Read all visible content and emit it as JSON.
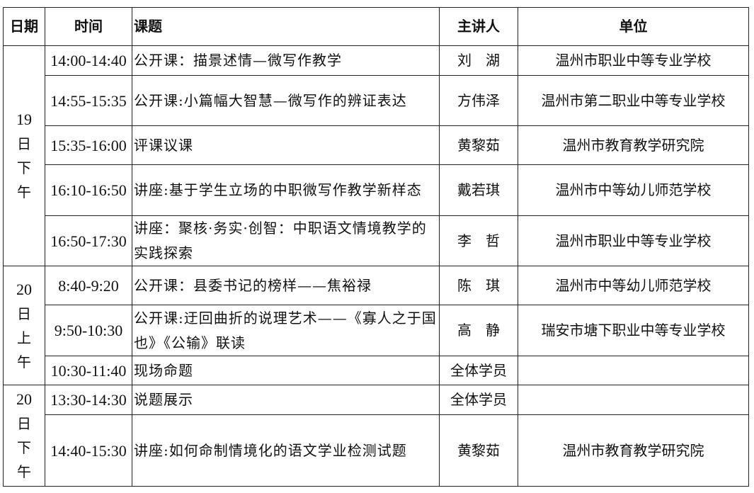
{
  "headers": {
    "date": "日期",
    "time": "时间",
    "topic": "课题",
    "speaker": "主讲人",
    "unit": "单位"
  },
  "groups": [
    {
      "day": "19",
      "chars": [
        "日",
        "下",
        "午"
      ],
      "rows": [
        {
          "time": "14:00-14:40",
          "topic": "公开课：描景述情—微写作教学",
          "speaker": "刘　湖",
          "unit": "温州市职业中等专业学校"
        },
        {
          "time": "14:55-15:35",
          "topic": "公开课:小篇幅大智慧—微写作的辨证表达",
          "speaker": "方伟泽",
          "unit": "温州市第二职业中等专业学校"
        },
        {
          "time": "15:35-16:00",
          "topic": "评课议课",
          "speaker": "黄黎茹",
          "unit": "温州市教育教学研究院"
        },
        {
          "time": "16:10-16:50",
          "topic": "讲座:基于学生立场的中职微写作教学新样态",
          "speaker": "戴若琪",
          "unit": "温州市中等幼儿师范学校"
        },
        {
          "time": "16:50-17:30",
          "topic": "讲座：聚核·务实·创智：中职语文情境教学的实践探索",
          "speaker": "李　哲",
          "unit": "温州市职业中等专业学校"
        }
      ]
    },
    {
      "day": "20",
      "chars": [
        "日",
        "上",
        "午"
      ],
      "rows": [
        {
          "time": "8:40-9:20",
          "topic": "公开课：县委书记的榜样——焦裕禄",
          "speaker": "陈　琪",
          "unit": "温州市中等幼儿师范学校"
        },
        {
          "time": "9:50-10:30",
          "topic": "公开课:迂回曲折的说理艺术——《寡人之于国也》《公输》联读",
          "speaker": "高　静",
          "unit": "瑞安市塘下职业中等专业学校"
        },
        {
          "time": "10:30-11:40",
          "topic": "现场命题",
          "speaker": "全体学员",
          "unit": ""
        }
      ]
    },
    {
      "day": "20",
      "chars": [
        "日",
        "下",
        "午"
      ],
      "rows": [
        {
          "time": "13:30-14:30",
          "topic": "说题展示",
          "speaker": "全体学员",
          "unit": ""
        },
        {
          "time": "14:40-15:30",
          "topic": "讲座:如何命制情境化的语文学业检测试题",
          "speaker": "黄黎茹",
          "unit": "温州市教育教学研究院"
        }
      ]
    }
  ]
}
